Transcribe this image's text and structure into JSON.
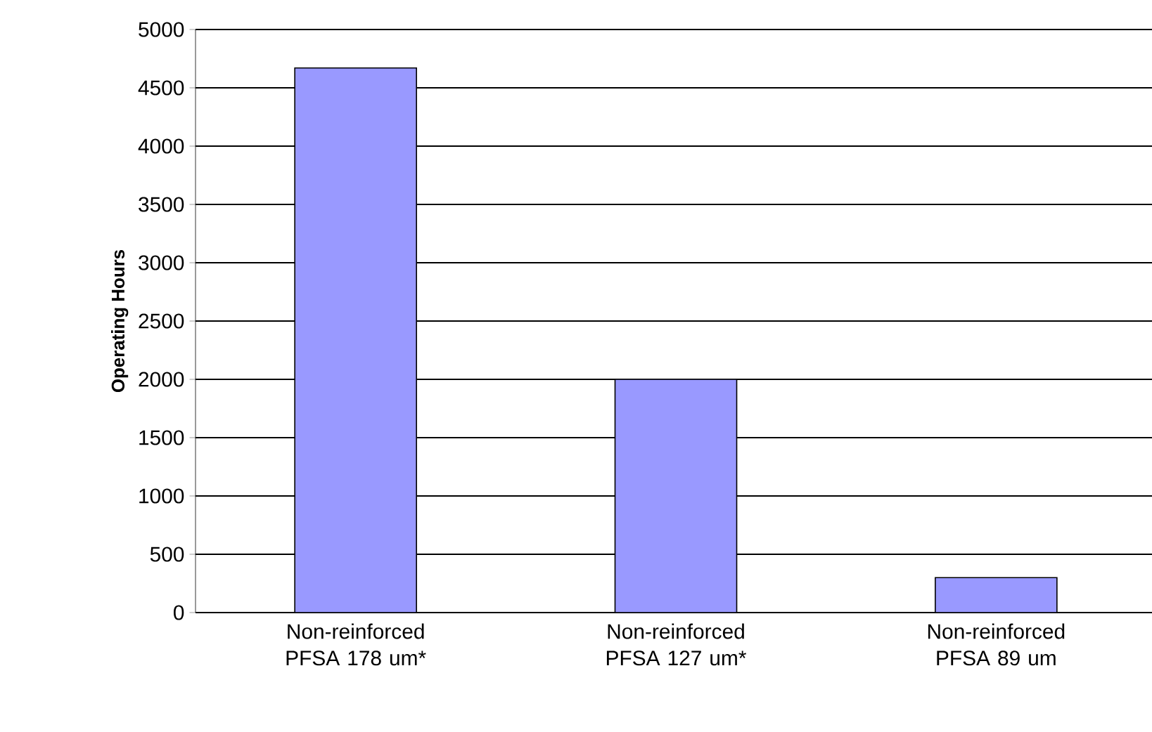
{
  "chart_data": {
    "type": "bar",
    "ylabel": "Operating Hours",
    "categories": [
      "Non-reinforced PFSA 178 um*",
      "Non-reinforced PFSA 127 um*",
      "Non-reinforced PFSA 89 um"
    ],
    "values": [
      4670,
      2000,
      300
    ],
    "color": "#9999ff",
    "ylim": [
      0,
      5000
    ],
    "yticks": [
      0,
      500,
      1000,
      1500,
      2000,
      2500,
      3000,
      3500,
      4000,
      4500,
      5000
    ],
    "grid": "y"
  }
}
